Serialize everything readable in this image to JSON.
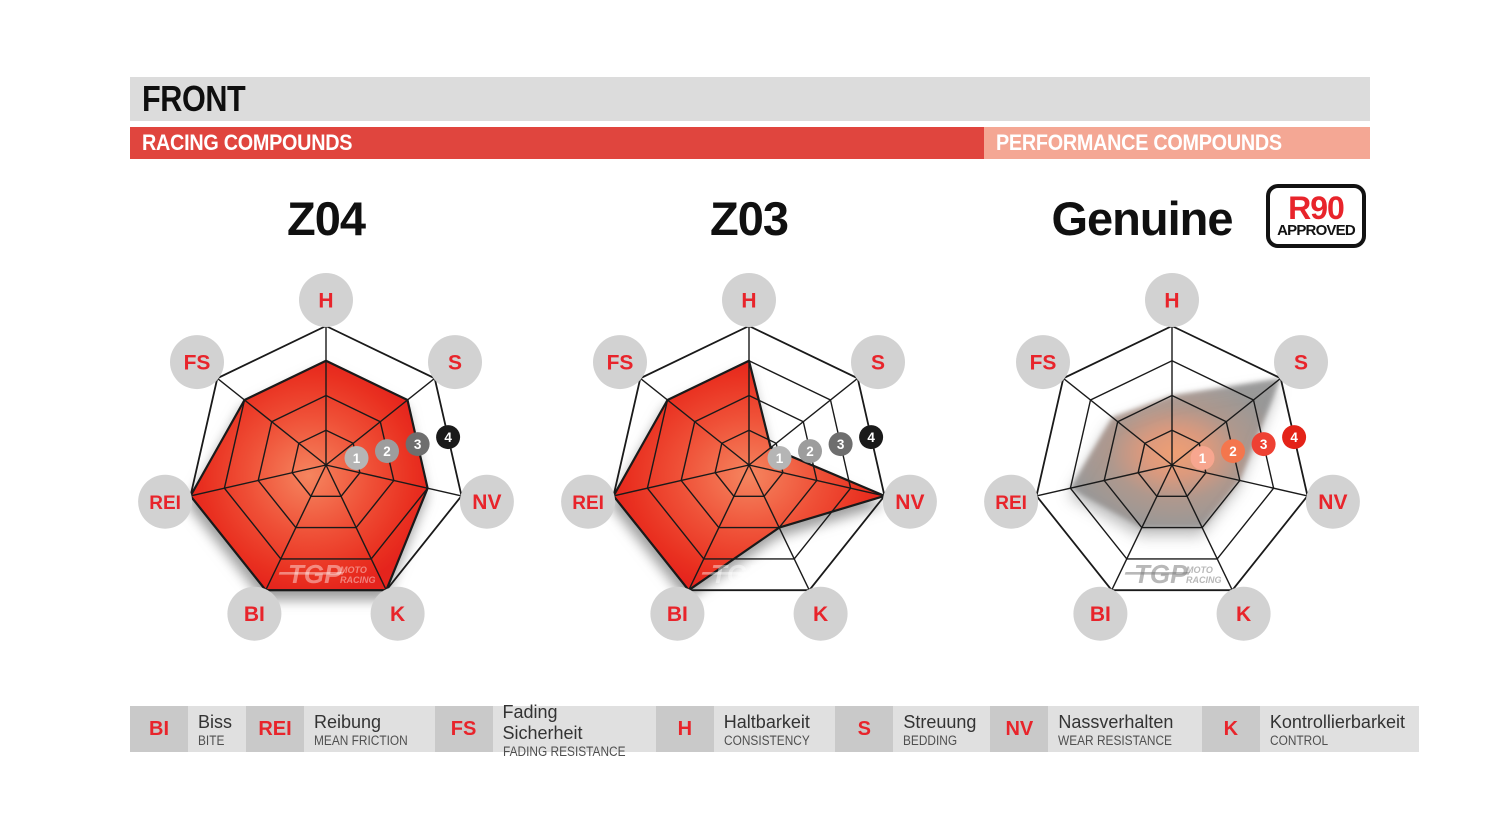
{
  "header": {
    "title": "FRONT",
    "racing_label": "RACING COMPOUNDS",
    "performance_label": "PERFORMANCE COMPOUNDS"
  },
  "badge": {
    "line1": "R90",
    "line2": "APPROVED"
  },
  "watermark": {
    "logo": "TGP",
    "line1": "MOTO",
    "line2": "RACING"
  },
  "colors": {
    "header_gray": "#dcdcdc",
    "racing_red": "#e0453e",
    "performance_salmon": "#f4a794",
    "brand_red": "#e8242b",
    "label_circle_gray": "#d2d2d2",
    "grid_line": "#1a1a1a",
    "legend_abbr_gray": "#c9c9c9",
    "legend_text_gray": "#e0e0e0"
  },
  "chart_data": [
    {
      "type": "radar",
      "title": "Z04",
      "group": "racing",
      "max": 4,
      "axes": [
        "H",
        "S",
        "NV",
        "K",
        "BI",
        "REI",
        "FS"
      ],
      "values": [
        3,
        3,
        3,
        4,
        4,
        4,
        3
      ],
      "ring_labels": [
        "1",
        "2",
        "3",
        "4"
      ],
      "badge_colors": [
        "#b5b5b5",
        "#9d9d9d",
        "#6e6e6e",
        "#1a1a1a"
      ],
      "outline": true,
      "soft": false,
      "fill_stops": [
        {
          "offset": "0%",
          "color": "#f5855f"
        },
        {
          "offset": "50%",
          "color": "#ef5037"
        },
        {
          "offset": "85%",
          "color": "#e93020"
        },
        {
          "offset": "100%",
          "color": "#e5241d"
        }
      ],
      "watermark_color": "rgba(255,255,255,0.42)"
    },
    {
      "type": "radar",
      "title": "Z03",
      "group": "racing",
      "max": 4,
      "axes": [
        "H",
        "S",
        "NV",
        "K",
        "BI",
        "REI",
        "FS"
      ],
      "values": [
        3,
        0.8,
        4,
        2,
        4,
        4,
        3
      ],
      "ring_labels": [
        "1",
        "2",
        "3",
        "4"
      ],
      "badge_colors": [
        "#b5b5b5",
        "#9d9d9d",
        "#6e6e6e",
        "#1a1a1a"
      ],
      "outline": true,
      "soft": false,
      "fill_stops": [
        {
          "offset": "0%",
          "color": "#f5855f"
        },
        {
          "offset": "50%",
          "color": "#ef5037"
        },
        {
          "offset": "85%",
          "color": "#e93020"
        },
        {
          "offset": "100%",
          "color": "#e5241d"
        }
      ],
      "watermark_color": "rgba(255,255,255,0.42)"
    },
    {
      "type": "radar",
      "title": "Genuine",
      "group": "performance",
      "max": 4,
      "axes": [
        "H",
        "S",
        "NV",
        "K",
        "BI",
        "REI",
        "FS"
      ],
      "values": [
        2,
        4,
        2,
        2,
        2,
        3,
        2.2
      ],
      "ring_labels": [
        "1",
        "2",
        "3",
        "4"
      ],
      "badge_colors": [
        "#f7a68f",
        "#f4764d",
        "#ee4133",
        "#e42318"
      ],
      "outline": false,
      "soft": true,
      "fill_stops": [
        {
          "offset": "0%",
          "color": "#f39c6d"
        },
        {
          "offset": "30%",
          "color": "#dd9678"
        },
        {
          "offset": "60%",
          "color": "#ad9489"
        },
        {
          "offset": "100%",
          "color": "#949494"
        }
      ],
      "watermark_color": "rgba(125,125,125,0.55)"
    }
  ],
  "legend": [
    {
      "abbr": "BI",
      "term": "Biss",
      "english": "BITE"
    },
    {
      "abbr": "REI",
      "term": "Reibung",
      "english": "MEAN FRICTION"
    },
    {
      "abbr": "FS",
      "term": "Fading Sicherheit",
      "english": "FADING RESISTANCE"
    },
    {
      "abbr": "H",
      "term": "Haltbarkeit",
      "english": "CONSISTENCY"
    },
    {
      "abbr": "S",
      "term": "Streuung",
      "english": "BEDDING"
    },
    {
      "abbr": "NV",
      "term": "Nassverhalten",
      "english": "WEAR RESISTANCE"
    },
    {
      "abbr": "K",
      "term": "Kontrollierbarkeit",
      "english": "CONTROL"
    }
  ]
}
